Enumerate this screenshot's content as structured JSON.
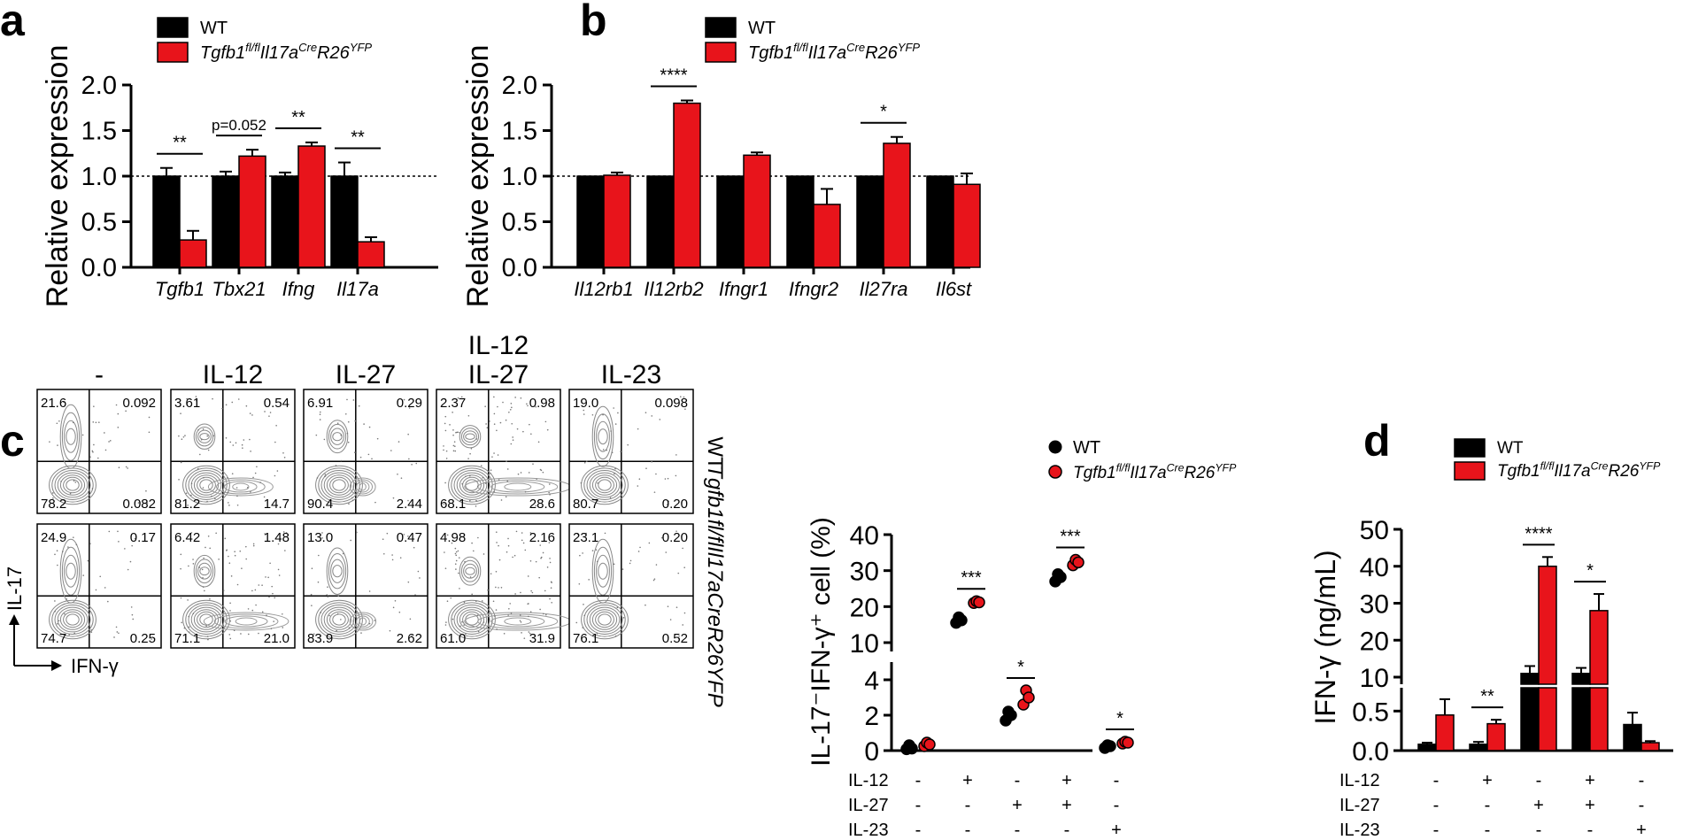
{
  "figure": {
    "panel_labels": [
      "a",
      "b",
      "c",
      "d"
    ]
  },
  "legend": {
    "wt": "WT",
    "ko_prefix": "Tgfb1",
    "ko_sup1": "fl/fl",
    "ko_mid1": "Il17a",
    "ko_sup2": "Cre",
    "ko_mid2": "R26",
    "ko_sup3": "YFP"
  },
  "colors": {
    "wt": "#000000",
    "ko": "#e8141b",
    "ko_dot": "#e8141b"
  },
  "chart_data": [
    {
      "panel": "a",
      "type": "bar",
      "categories": [
        "Tgfb1",
        "Tbx21",
        "Ifng",
        "Il17a"
      ],
      "ylabel": "Relative expression",
      "ylim": [
        0,
        2.0
      ],
      "yticks": [
        "0.0",
        "0.5",
        "1.0",
        "1.5",
        "2.0"
      ],
      "reference_line": 1.0,
      "series": [
        {
          "name": "WT",
          "values": [
            1.0,
            1.0,
            1.0,
            1.0
          ],
          "errors": [
            0.09,
            0.05,
            0.04,
            0.15
          ]
        },
        {
          "name": "Tgfb1fl/flIl17aCreR26YFP",
          "values": [
            0.3,
            1.22,
            1.33,
            0.28
          ],
          "errors": [
            0.1,
            0.07,
            0.04,
            0.05
          ]
        }
      ],
      "annotations": [
        "**",
        "p=0.052",
        "**",
        "**"
      ]
    },
    {
      "panel": "b",
      "type": "bar",
      "categories": [
        "Il12rb1",
        "Il12rb2",
        "Ifngr1",
        "Ifngr2",
        "Il27ra",
        "Il6st"
      ],
      "ylabel": "Relative expression",
      "ylim": [
        0,
        2.0
      ],
      "yticks": [
        "0.0",
        "0.5",
        "1.0",
        "1.5",
        "2.0"
      ],
      "reference_line": 1.0,
      "series": [
        {
          "name": "WT",
          "values": [
            1.0,
            1.0,
            1.0,
            1.0,
            1.0,
            1.0
          ],
          "errors": [
            0,
            0,
            0,
            0,
            0,
            0
          ]
        },
        {
          "name": "Tgfb1fl/flIl17aCreR26YFP",
          "values": [
            1.01,
            1.8,
            1.23,
            0.69,
            1.36,
            0.91
          ],
          "errors": [
            0.03,
            0.03,
            0.03,
            0.17,
            0.07,
            0.12
          ]
        }
      ],
      "annotations": [
        "",
        "****",
        "",
        "",
        "*",
        ""
      ]
    },
    {
      "panel": "c-flow",
      "type": "table",
      "columns": [
        "-",
        "IL-12",
        "IL-27",
        "IL-12\nIL-27",
        "IL-23"
      ],
      "column_line1": [
        "",
        "",
        "",
        "IL-12",
        ""
      ],
      "column_line2": [
        "-",
        "IL-12",
        "IL-27",
        "IL-27",
        "IL-23"
      ],
      "rows": [
        "WT",
        "Tgfb1fl/flIl17aCreR26YFP"
      ],
      "quadrants": [
        [
          [
            "21.6",
            "0.092",
            "78.2",
            "0.082"
          ],
          [
            "3.61",
            "0.54",
            "81.2",
            "14.7"
          ],
          [
            "6.91",
            "0.29",
            "90.4",
            "2.44"
          ],
          [
            "2.37",
            "0.98",
            "68.1",
            "28.6"
          ],
          [
            "19.0",
            "0.098",
            "80.7",
            "0.20"
          ]
        ],
        [
          [
            "24.9",
            "0.17",
            "74.7",
            "0.25"
          ],
          [
            "6.42",
            "1.48",
            "71.1",
            "21.0"
          ],
          [
            "13.0",
            "0.47",
            "83.9",
            "2.62"
          ],
          [
            "4.98",
            "2.16",
            "61.0",
            "31.9"
          ],
          [
            "23.1",
            "0.20",
            "76.1",
            "0.52"
          ]
        ]
      ],
      "y_axis": "IL-17",
      "x_axis": "IFN-γ"
    },
    {
      "panel": "c-summary",
      "type": "scatter",
      "ylabel": "IL-17⁻IFN-γ⁺ cell (%)",
      "yticks_upper": [
        "10",
        "20",
        "30",
        "40"
      ],
      "yticks_lower": [
        "0",
        "2",
        "4"
      ],
      "conditions": [
        {
          "il12": "-",
          "il27": "-",
          "il23": "-"
        },
        {
          "il12": "+",
          "il27": "-",
          "il23": "-"
        },
        {
          "il12": "-",
          "il27": "+",
          "il23": "-"
        },
        {
          "il12": "+",
          "il27": "+",
          "il23": "-"
        },
        {
          "il12": "-",
          "il27": "-",
          "il23": "+"
        }
      ],
      "series": [
        {
          "name": "WT",
          "points": [
            [
              0.08,
              0.3,
              0.12
            ],
            [
              15.5,
              17.0,
              16.2
            ],
            [
              1.7,
              2.2,
              2.0
            ],
            [
              27.0,
              29.0,
              28.2
            ],
            [
              0.15,
              0.3,
              0.25
            ]
          ]
        },
        {
          "name": "Tgfb1fl/flIl17aCreR26YFP",
          "points": [
            [
              0.25,
              0.45,
              0.35
            ],
            [
              21.0,
              21.5,
              21.2
            ],
            [
              2.6,
              3.4,
              3.0
            ],
            [
              31.5,
              33.0,
              32.3
            ],
            [
              0.4,
              0.5,
              0.45
            ]
          ]
        }
      ],
      "annotations": [
        "",
        "***",
        "*",
        "***",
        "*"
      ]
    },
    {
      "panel": "d",
      "type": "bar",
      "ylabel": "IFN-γ (ng/mL)",
      "yticks_upper": [
        "10",
        "20",
        "30",
        "40",
        "50"
      ],
      "yticks_lower": [
        "0.0",
        "0.5"
      ],
      "conditions": [
        {
          "il12": "-",
          "il27": "-",
          "il23": "-"
        },
        {
          "il12": "+",
          "il27": "-",
          "il23": "-"
        },
        {
          "il12": "-",
          "il27": "+",
          "il23": "-"
        },
        {
          "il12": "+",
          "il27": "+",
          "il23": "-"
        },
        {
          "il12": "-",
          "il27": "-",
          "il23": "+"
        }
      ],
      "series": [
        {
          "name": "WT",
          "values": [
            0.08,
            0.08,
            11.0,
            11.0,
            0.33
          ],
          "errors": [
            0.02,
            0.03,
            2.0,
            1.5,
            0.15
          ]
        },
        {
          "name": "Tgfb1fl/flIl17aCreR26YFP",
          "values": [
            0.45,
            0.34,
            40.0,
            28.0,
            0.1
          ],
          "errors": [
            0.2,
            0.05,
            2.5,
            4.5,
            0.02
          ]
        }
      ],
      "annotations": [
        "",
        "**",
        "****",
        "*",
        ""
      ]
    }
  ],
  "row_labels": {
    "il12": "IL-12",
    "il27": "IL-27",
    "il23": "IL-23"
  }
}
